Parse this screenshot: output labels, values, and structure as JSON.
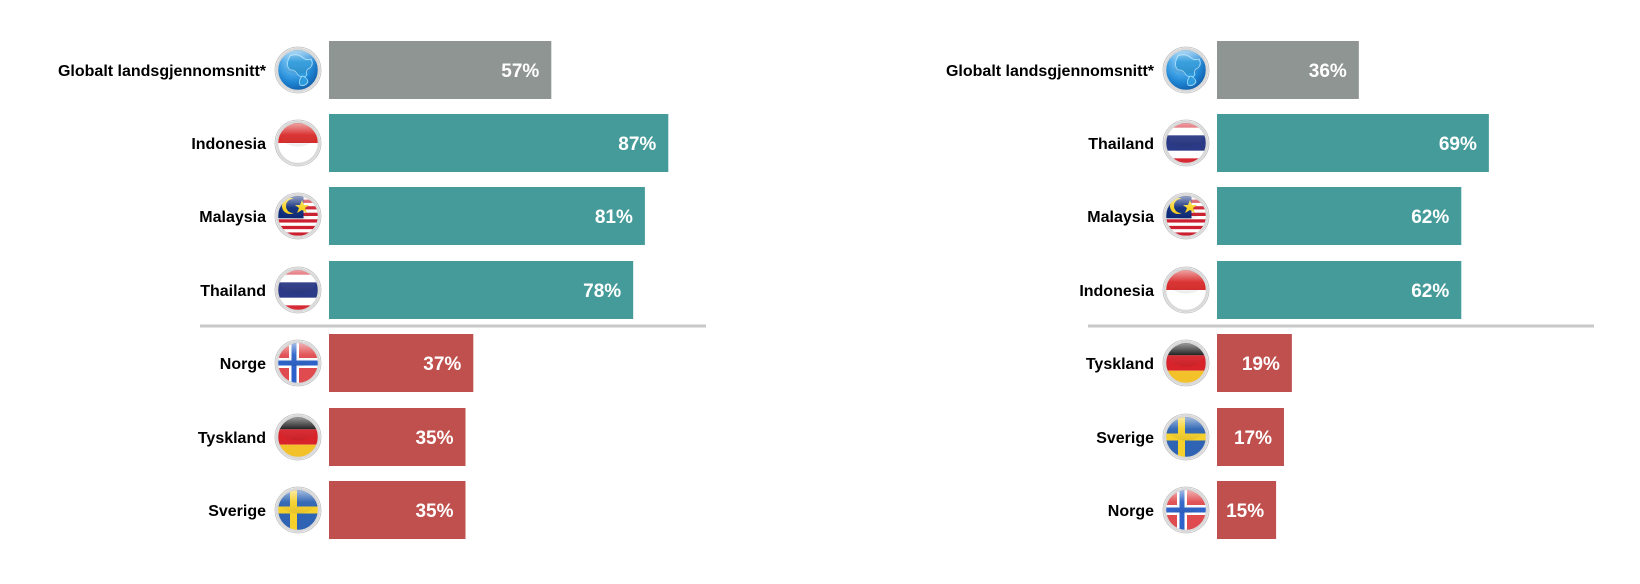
{
  "chart_data": [
    {
      "type": "bar",
      "orientation": "horizontal",
      "categories": [
        "Globalt landsgjennomsnitt*",
        "Indonesia",
        "Malaysia",
        "Thailand",
        "Norge",
        "Tyskland",
        "Sverige"
      ],
      "values": [
        57,
        87,
        81,
        78,
        37,
        35,
        35
      ],
      "value_labels": [
        "57%",
        "87%",
        "81%",
        "78%",
        "37%",
        "35%",
        "35%"
      ],
      "groups": [
        "global",
        "high",
        "high",
        "high",
        "low",
        "low",
        "low"
      ],
      "flags": [
        "globe-icon",
        "indonesia-flag-icon",
        "malaysia-flag-icon",
        "thailand-flag-icon",
        "norway-flag-icon",
        "germany-flag-icon",
        "sweden-flag-icon"
      ],
      "xlim": [
        0,
        100
      ],
      "grid": false,
      "legend": "none"
    },
    {
      "type": "bar",
      "orientation": "horizontal",
      "categories": [
        "Globalt landsgjennomsnitt*",
        "Thailand",
        "Malaysia",
        "Indonesia",
        "Tyskland",
        "Sverige",
        "Norge"
      ],
      "values": [
        36,
        69,
        62,
        62,
        19,
        17,
        15
      ],
      "value_labels": [
        "36%",
        "69%",
        "62%",
        "62%",
        "19%",
        "17%",
        "15%"
      ],
      "groups": [
        "global",
        "high",
        "high",
        "high",
        "low",
        "low",
        "low"
      ],
      "flags": [
        "globe-icon",
        "thailand-flag-icon",
        "malaysia-flag-icon",
        "indonesia-flag-icon",
        "germany-flag-icon",
        "sweden-flag-icon",
        "norway-flag-icon"
      ],
      "xlim": [
        0,
        100
      ],
      "grid": false,
      "legend": "none"
    }
  ],
  "colors": {
    "global": "#8f9593",
    "high": "#459b9a",
    "low": "#c0504d",
    "divider": "#c8c8c8"
  }
}
